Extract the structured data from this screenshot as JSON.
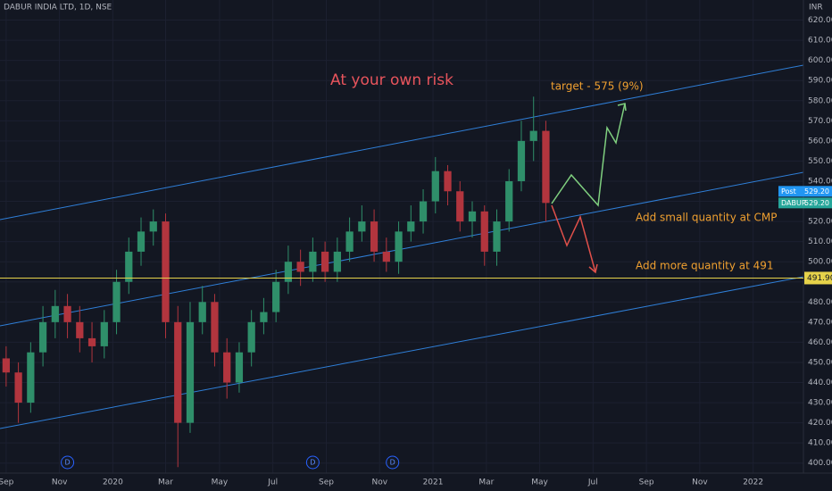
{
  "chart_data": {
    "type": "candlestick",
    "title": "DABUR INDIA LTD, 1D, NSE",
    "currency": "INR",
    "x": [
      0,
      2,
      4,
      6,
      8,
      10,
      12,
      14,
      16,
      18,
      20,
      22,
      24,
      26,
      28,
      30,
      32,
      34,
      36,
      38,
      40,
      42,
      44,
      46,
      48,
      50,
      52,
      54,
      56,
      58,
      60,
      62,
      64,
      66,
      68,
      70,
      72,
      74,
      76,
      78,
      80,
      82,
      84,
      86,
      88
    ],
    "series": [
      {
        "name": "DABUR",
        "up_color": "#2f8f6a",
        "down_color": "#b2353e",
        "open": [
          452,
          445,
          430,
          455,
          470,
          478,
          470,
          462,
          458,
          470,
          490,
          505,
          515,
          520,
          470,
          420,
          470,
          480,
          455,
          440,
          455,
          470,
          475,
          490,
          500,
          495,
          505,
          495,
          505,
          515,
          520,
          505,
          500,
          515,
          520,
          530,
          545,
          535,
          520,
          525,
          505,
          520,
          540,
          560,
          565
        ],
        "high": [
          458,
          450,
          460,
          478,
          486,
          484,
          478,
          470,
          476,
          496,
          512,
          522,
          526,
          524,
          478,
          480,
          488,
          484,
          462,
          460,
          476,
          482,
          496,
          508,
          506,
          512,
          510,
          512,
          522,
          528,
          526,
          512,
          520,
          528,
          536,
          552,
          548,
          540,
          530,
          528,
          526,
          546,
          570,
          582,
          570
        ],
        "low": [
          438,
          420,
          425,
          448,
          462,
          462,
          455,
          450,
          452,
          464,
          484,
          498,
          508,
          462,
          398,
          415,
          464,
          448,
          432,
          435,
          448,
          464,
          470,
          484,
          488,
          490,
          490,
          490,
          500,
          510,
          500,
          495,
          494,
          510,
          514,
          524,
          528,
          515,
          512,
          498,
          498,
          515,
          535,
          550,
          520
        ],
        "close": [
          445,
          430,
          455,
          470,
          478,
          470,
          462,
          458,
          470,
          490,
          505,
          515,
          520,
          470,
          420,
          470,
          480,
          455,
          440,
          455,
          470,
          475,
          490,
          500,
          495,
          505,
          495,
          505,
          515,
          520,
          505,
          500,
          515,
          520,
          530,
          545,
          535,
          520,
          525,
          505,
          520,
          540,
          560,
          565,
          529.2
        ]
      }
    ],
    "xlim": [
      -1,
      130
    ],
    "xticks": [
      {
        "value": 0,
        "label": "Sep"
      },
      {
        "value": 8.7,
        "label": "Nov"
      },
      {
        "value": 17.4,
        "label": "2020"
      },
      {
        "value": 26,
        "label": "Mar"
      },
      {
        "value": 34.8,
        "label": "May"
      },
      {
        "value": 43.5,
        "label": "Jul"
      },
      {
        "value": 52.2,
        "label": "Sep"
      },
      {
        "value": 60.9,
        "label": "Nov"
      },
      {
        "value": 69.6,
        "label": "2021"
      },
      {
        "value": 78.3,
        "label": "Mar"
      },
      {
        "value": 87,
        "label": "May"
      },
      {
        "value": 95.7,
        "label": "Jul"
      },
      {
        "value": 104.4,
        "label": "Sep"
      },
      {
        "value": 113.1,
        "label": "Nov"
      },
      {
        "value": 121.8,
        "label": "2022"
      }
    ],
    "ylim": [
      395,
      630
    ],
    "yticks": [
      {
        "value": 400,
        "label": "400.00"
      },
      {
        "value": 410,
        "label": "410.00"
      },
      {
        "value": 420,
        "label": "420.00"
      },
      {
        "value": 430,
        "label": "430.00"
      },
      {
        "value": 440,
        "label": "440.00"
      },
      {
        "value": 450,
        "label": "450.00"
      },
      {
        "value": 460,
        "label": "460.00"
      },
      {
        "value": 470,
        "label": "470.00"
      },
      {
        "value": 480,
        "label": "480.00"
      },
      {
        "value": 490,
        "label": "490.00"
      },
      {
        "value": 500,
        "label": "500.00"
      },
      {
        "value": 510,
        "label": "510.00"
      },
      {
        "value": 520,
        "label": "520.00"
      },
      {
        "value": 530,
        "label": "530.00"
      },
      {
        "value": 540,
        "label": "540.00"
      },
      {
        "value": 550,
        "label": "550.00"
      },
      {
        "value": 560,
        "label": "560.00"
      },
      {
        "value": 570,
        "label": "570.00"
      },
      {
        "value": 580,
        "label": "580.00"
      },
      {
        "value": 590,
        "label": "590.00"
      },
      {
        "value": 600,
        "label": "600.00"
      },
      {
        "value": 610,
        "label": "610.00"
      },
      {
        "value": 620,
        "label": "620.00"
      }
    ],
    "grid": true,
    "horizontal_line": {
      "value": 491.9,
      "label": "491.90",
      "color": "#e6d24a"
    },
    "price_labels": [
      {
        "name": "Post",
        "value": 529.2,
        "label": "529.20",
        "color": "#2196f3"
      },
      {
        "name": "DABUR",
        "value": 529.2,
        "label": "529.20",
        "color": "#26a69a"
      }
    ],
    "events": [
      {
        "x": 10,
        "label": "D"
      },
      {
        "x": 50,
        "label": "D"
      },
      {
        "x": 63,
        "label": "D"
      }
    ],
    "annotations": {
      "risk": "At your own risk",
      "target": "target - 575 (9%)",
      "small": "Add small quantity at CMP",
      "more": "Add more quantity at 491"
    }
  }
}
